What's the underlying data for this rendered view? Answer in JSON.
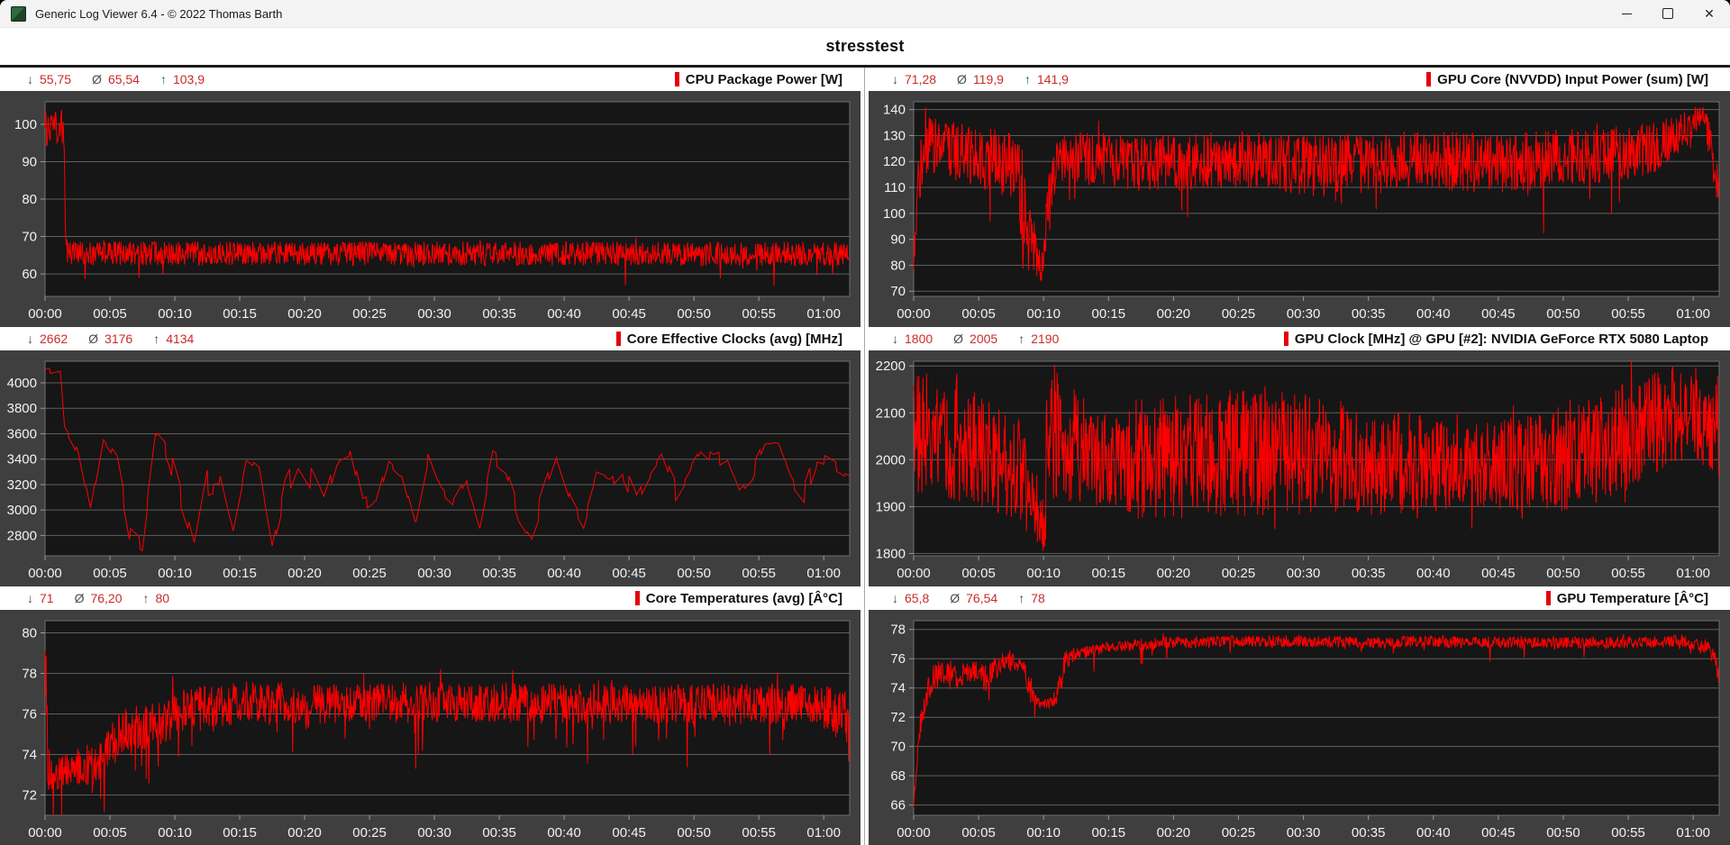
{
  "window": {
    "title": "Generic Log Viewer 6.4 - © 2022 Thomas Barth",
    "close_glyph": "✕"
  },
  "header": {
    "title": "stresstest"
  },
  "glyphs": {
    "min_sym": "↓",
    "avg_sym": "Ø",
    "max_sym": "↑"
  },
  "colors": {
    "series": "#ff0000",
    "stats_value": "#c92a2a",
    "chart_bg": "#3f3f3f",
    "plot_bg": "#161616",
    "grid_line": "#5f5f5f",
    "plot_border": "#6f6f6f",
    "tick_label": "#f2f2f2",
    "title_marker": "#e3000f"
  },
  "x_axis": {
    "labels": [
      "00:00",
      "00:05",
      "00:10",
      "00:15",
      "00:20",
      "00:25",
      "00:30",
      "00:35",
      "00:40",
      "00:45",
      "00:50",
      "00:55",
      "01:00"
    ],
    "seconds": [
      0,
      300,
      600,
      900,
      1200,
      1500,
      1800,
      2100,
      2400,
      2700,
      3000,
      3300,
      3600
    ],
    "max_seconds": 3720
  },
  "chart_data": [
    {
      "type": "line",
      "title": "CPU Package Power [W]",
      "stats": {
        "min": "55,75",
        "avg": "65,54",
        "max": "103,9"
      },
      "y_ticks": [
        100,
        90,
        80,
        70,
        60
      ],
      "y_range": [
        54,
        106
      ],
      "style": "dense",
      "noise": {
        "down_rate": 0.025,
        "down_amp": 6,
        "up_rate": 0.012,
        "up_amp": 3
      },
      "keyframes": [
        [
          0,
          99,
          5
        ],
        [
          88,
          99,
          5
        ],
        [
          96,
          65.5,
          3.2
        ],
        [
          3720,
          65.3,
          3.2
        ]
      ]
    },
    {
      "type": "line",
      "title": "GPU Core (NVVDD) Input Power (sum) [W]",
      "stats": {
        "min": "71,28",
        "avg": "119,9",
        "max": "141,9"
      },
      "y_ticks": [
        140,
        130,
        120,
        110,
        100,
        90,
        80,
        70
      ],
      "y_range": [
        68,
        143
      ],
      "style": "dense",
      "noise": {
        "down_rate": 0.022,
        "down_amp": 22,
        "up_rate": 0.015,
        "up_amp": 7
      },
      "keyframes": [
        [
          0,
          84,
          7
        ],
        [
          25,
          116,
          12
        ],
        [
          70,
          126,
          11
        ],
        [
          300,
          122,
          12
        ],
        [
          470,
          118,
          13
        ],
        [
          510,
          100,
          24
        ],
        [
          560,
          86,
          10
        ],
        [
          595,
          79,
          6
        ],
        [
          625,
          108,
          12
        ],
        [
          665,
          122,
          10
        ],
        [
          1100,
          119,
          11
        ],
        [
          1500,
          121,
          11
        ],
        [
          1900,
          118,
          12
        ],
        [
          2300,
          121,
          11
        ],
        [
          2700,
          119,
          12
        ],
        [
          3100,
          122,
          11
        ],
        [
          3420,
          125,
          10
        ],
        [
          3560,
          132,
          8
        ],
        [
          3645,
          139,
          3
        ],
        [
          3680,
          126,
          10
        ],
        [
          3720,
          113,
          10
        ]
      ]
    },
    {
      "type": "line",
      "title": "Core Effective Clocks (avg) [MHz]",
      "stats": {
        "min": "2662",
        "avg": "3176",
        "max": "4134"
      },
      "y_ticks": [
        4000,
        3800,
        3600,
        3400,
        3200,
        3000,
        2800
      ],
      "y_range": [
        2640,
        4170
      ],
      "style": "wander",
      "noise": {},
      "keyframes": [
        [
          0,
          4090,
          40
        ],
        [
          70,
          4110,
          30
        ],
        [
          90,
          3640,
          60
        ],
        [
          150,
          3450,
          120
        ],
        [
          210,
          2950,
          120
        ],
        [
          270,
          3540,
          80
        ],
        [
          330,
          3400,
          100
        ],
        [
          390,
          2850,
          120
        ],
        [
          450,
          2760,
          80
        ],
        [
          510,
          3580,
          80
        ],
        [
          570,
          3440,
          120
        ],
        [
          630,
          3050,
          150
        ],
        [
          690,
          2710,
          60
        ],
        [
          750,
          3250,
          150
        ],
        [
          810,
          3250,
          120
        ],
        [
          870,
          2810,
          100
        ],
        [
          930,
          3300,
          150
        ],
        [
          990,
          3250,
          100
        ],
        [
          1050,
          2690,
          50
        ],
        [
          1110,
          3150,
          120
        ],
        [
          1170,
          3400,
          100
        ],
        [
          1230,
          3250,
          120
        ],
        [
          1290,
          3050,
          100
        ],
        [
          1350,
          3400,
          80
        ],
        [
          1410,
          3450,
          80
        ],
        [
          1470,
          2980,
          120
        ],
        [
          1530,
          3050,
          100
        ],
        [
          1590,
          3420,
          80
        ],
        [
          1650,
          3340,
          100
        ],
        [
          1710,
          2950,
          100
        ],
        [
          1770,
          3430,
          80
        ],
        [
          1830,
          3150,
          120
        ],
        [
          1890,
          3050,
          100
        ],
        [
          1950,
          3230,
          100
        ],
        [
          2010,
          2890,
          80
        ],
        [
          2070,
          3410,
          80
        ],
        [
          2130,
          3330,
          80
        ],
        [
          2190,
          3030,
          120
        ],
        [
          2250,
          2830,
          80
        ],
        [
          2310,
          3130,
          120
        ],
        [
          2370,
          3430,
          80
        ],
        [
          2430,
          3130,
          100
        ],
        [
          2490,
          2930,
          80
        ],
        [
          2550,
          3280,
          80
        ],
        [
          2610,
          3230,
          100
        ],
        [
          2670,
          3330,
          80
        ],
        [
          2730,
          3080,
          100
        ],
        [
          2790,
          3280,
          80
        ],
        [
          2850,
          3420,
          60
        ],
        [
          2910,
          3130,
          120
        ],
        [
          2970,
          3280,
          80
        ],
        [
          3030,
          3470,
          60
        ],
        [
          3090,
          3380,
          80
        ],
        [
          3150,
          3430,
          60
        ],
        [
          3210,
          3180,
          100
        ],
        [
          3270,
          3280,
          80
        ],
        [
          3330,
          3520,
          60
        ],
        [
          3390,
          3520,
          60
        ],
        [
          3450,
          3280,
          100
        ],
        [
          3510,
          3130,
          80
        ],
        [
          3570,
          3430,
          80
        ],
        [
          3630,
          3380,
          60
        ],
        [
          3720,
          3300,
          80
        ]
      ]
    },
    {
      "type": "line",
      "title": "GPU Clock [MHz] @ GPU [#2]: NVIDIA GeForce RTX 5080 Laptop",
      "stats": {
        "min": "1800",
        "avg": "2005",
        "max": "2190"
      },
      "y_ticks": [
        2200,
        2100,
        2000,
        1900,
        1800
      ],
      "y_range": [
        1795,
        2210
      ],
      "style": "dense",
      "noise": {
        "down_rate": 0.03,
        "down_amp": 80,
        "up_rate": 0.03,
        "up_amp": 60
      },
      "keyframes": [
        [
          0,
          2060,
          130
        ],
        [
          240,
          2040,
          130
        ],
        [
          480,
          1980,
          120
        ],
        [
          560,
          1900,
          90
        ],
        [
          600,
          1862,
          60
        ],
        [
          615,
          1990,
          170
        ],
        [
          660,
          2050,
          140
        ],
        [
          900,
          1990,
          90
        ],
        [
          1020,
          2000,
          130
        ],
        [
          1500,
          2020,
          140
        ],
        [
          2100,
          2000,
          120
        ],
        [
          2580,
          1985,
          90
        ],
        [
          2880,
          1990,
          110
        ],
        [
          3240,
          2040,
          130
        ],
        [
          3480,
          2090,
          105
        ],
        [
          3600,
          2100,
          100
        ],
        [
          3720,
          2060,
          120
        ]
      ]
    },
    {
      "type": "line",
      "title": "Core Temperatures (avg) [Â°C]",
      "stats": {
        "min": "71",
        "avg": "76,20",
        "max": "80"
      },
      "y_ticks": [
        80,
        78,
        76,
        74,
        72
      ],
      "y_range": [
        71,
        80.6
      ],
      "style": "dense",
      "noise": {
        "down_rate": 0.05,
        "down_amp": 2.6,
        "up_rate": 0.02,
        "up_amp": 0.9
      },
      "keyframes": [
        [
          0,
          79.5,
          1.4
        ],
        [
          10,
          75.5,
          3
        ],
        [
          22,
          72.9,
          0.9
        ],
        [
          120,
          73.3,
          0.8
        ],
        [
          240,
          73.5,
          1
        ],
        [
          330,
          74.8,
          1.2
        ],
        [
          420,
          75.2,
          1.2
        ],
        [
          540,
          75.6,
          1.2
        ],
        [
          660,
          76.3,
          1
        ],
        [
          780,
          76.2,
          1.2
        ],
        [
          900,
          76.6,
          1
        ],
        [
          1200,
          76.5,
          1
        ],
        [
          1800,
          76.6,
          1
        ],
        [
          2400,
          76.5,
          1
        ],
        [
          3000,
          76.5,
          1
        ],
        [
          3540,
          76.5,
          1
        ],
        [
          3660,
          76.1,
          1.2
        ],
        [
          3720,
          75.8,
          1.4
        ]
      ]
    },
    {
      "type": "line",
      "title": "GPU Temperature [Â°C]",
      "stats": {
        "min": "65,8",
        "avg": "76,54",
        "max": "78"
      },
      "y_ticks": [
        78,
        76,
        74,
        72,
        70,
        68,
        66
      ],
      "y_range": [
        65.3,
        78.6
      ],
      "style": "dense",
      "noise": {
        "down_rate": 0.02,
        "down_amp": 1.3,
        "up_rate": 0.012,
        "up_amp": 0.5
      },
      "keyframes": [
        [
          0,
          65.9,
          0.2
        ],
        [
          15,
          69,
          1
        ],
        [
          40,
          72.5,
          1
        ],
        [
          80,
          74.5,
          1
        ],
        [
          120,
          75,
          0.9
        ],
        [
          180,
          74.6,
          1
        ],
        [
          240,
          74.9,
          0.8
        ],
        [
          300,
          75.2,
          0.7
        ],
        [
          330,
          74.6,
          1
        ],
        [
          390,
          75.6,
          0.8
        ],
        [
          450,
          75.9,
          0.5
        ],
        [
          510,
          75.2,
          1
        ],
        [
          540,
          74,
          0.8
        ],
        [
          575,
          73,
          0.4
        ],
        [
          620,
          72.9,
          0.35
        ],
        [
          660,
          73.4,
          0.6
        ],
        [
          700,
          75.8,
          0.8
        ],
        [
          740,
          76.3,
          0.45
        ],
        [
          840,
          76.6,
          0.4
        ],
        [
          960,
          76.9,
          0.4
        ],
        [
          1200,
          77.1,
          0.4
        ],
        [
          1500,
          77.2,
          0.4
        ],
        [
          1800,
          77.2,
          0.4
        ],
        [
          2100,
          77.1,
          0.4
        ],
        [
          2400,
          77.2,
          0.4
        ],
        [
          2700,
          77.1,
          0.4
        ],
        [
          3000,
          77.1,
          0.4
        ],
        [
          3300,
          77.1,
          0.4
        ],
        [
          3540,
          77.2,
          0.4
        ],
        [
          3650,
          76.9,
          0.5
        ],
        [
          3690,
          76.3,
          0.6
        ],
        [
          3720,
          74.9,
          0.8
        ]
      ]
    }
  ]
}
